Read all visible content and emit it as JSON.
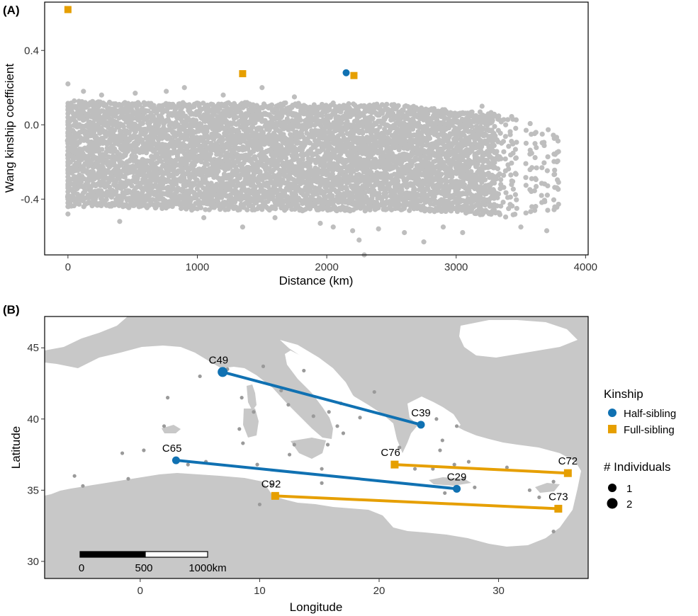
{
  "chart_data": [
    {
      "type": "scatter",
      "panel_label": "(A)",
      "xlabel": "Distance (km)",
      "ylabel": "Wang kinship coefficient",
      "xlim": [
        -180,
        4020
      ],
      "ylim": [
        -0.7,
        0.66
      ],
      "xticks": [
        0,
        1000,
        2000,
        3000,
        4000
      ],
      "yticks": [
        0.4,
        0.0,
        -0.4
      ],
      "ytick_labels": [
        "0.4",
        "0.0",
        "-0.4"
      ],
      "grid": false,
      "background_points": {
        "color": "#BEBEBE",
        "description_band": "dense cloud of unrelated pairs",
        "band": [
          {
            "x": 0,
            "lo": -0.44,
            "hi": 0.13
          },
          {
            "x": 500,
            "lo": -0.45,
            "hi": 0.12
          },
          {
            "x": 1000,
            "lo": -0.46,
            "hi": 0.12
          },
          {
            "x": 1500,
            "lo": -0.46,
            "hi": 0.12
          },
          {
            "x": 2000,
            "lo": -0.47,
            "hi": 0.12
          },
          {
            "x": 2500,
            "lo": -0.46,
            "hi": 0.11
          },
          {
            "x": 3000,
            "lo": -0.47,
            "hi": 0.08
          },
          {
            "x": 3400,
            "lo": -0.5,
            "hi": 0.06
          },
          {
            "x": 3800,
            "lo": -0.48,
            "hi": -0.05
          }
        ],
        "outliers": [
          [
            0,
            0.22
          ],
          [
            0,
            -0.48
          ],
          [
            120,
            0.18
          ],
          [
            260,
            0.16
          ],
          [
            400,
            -0.52
          ],
          [
            520,
            0.17
          ],
          [
            760,
            0.18
          ],
          [
            900,
            0.2
          ],
          [
            1050,
            -0.5
          ],
          [
            1200,
            0.16
          ],
          [
            1350,
            -0.55
          ],
          [
            1500,
            0.2
          ],
          [
            1600,
            -0.5
          ],
          [
            1750,
            0.15
          ],
          [
            1950,
            -0.53
          ],
          [
            2050,
            -0.55
          ],
          [
            2200,
            -0.57
          ],
          [
            2250,
            -0.62
          ],
          [
            2290,
            -0.7
          ],
          [
            2400,
            -0.56
          ],
          [
            2600,
            -0.58
          ],
          [
            2750,
            -0.63
          ],
          [
            2900,
            -0.55
          ],
          [
            3050,
            -0.58
          ],
          [
            3200,
            0.1
          ],
          [
            3500,
            -0.55
          ],
          [
            3700,
            -0.57
          ]
        ]
      },
      "series": [
        {
          "name": "Half-sibling",
          "color": "#1071B2",
          "marker": "circle",
          "points": [
            [
              2150,
              0.28
            ]
          ]
        },
        {
          "name": "Full-sibling",
          "color": "#E69F00",
          "marker": "square",
          "points": [
            [
              0,
              0.62
            ],
            [
              1350,
              0.275
            ],
            [
              2210,
              0.265
            ]
          ]
        }
      ]
    },
    {
      "type": "map",
      "panel_label": "(B)",
      "xlabel": "Longitude",
      "ylabel": "Latitude",
      "xlim": [
        -8,
        37.5
      ],
      "ylim": [
        28.8,
        47.2
      ],
      "xticks": [
        0,
        10,
        20,
        30
      ],
      "yticks": [
        30,
        35,
        40,
        45
      ],
      "land_color": "#C8C8C8",
      "sea_color": "#FFFFFF",
      "sample_sites": [
        [
          -5.5,
          36.0
        ],
        [
          -4.8,
          35.3
        ],
        [
          -1.0,
          35.8
        ],
        [
          -1.5,
          37.6
        ],
        [
          0.3,
          37.8
        ],
        [
          2.0,
          39.5
        ],
        [
          2.3,
          41.5
        ],
        [
          5.5,
          37.0
        ],
        [
          5.0,
          43.0
        ],
        [
          7.3,
          43.5
        ],
        [
          8.5,
          41.5
        ],
        [
          8.3,
          39.3
        ],
        [
          9.5,
          40.5
        ],
        [
          8.6,
          38.3
        ],
        [
          9.8,
          36.8
        ],
        [
          10.3,
          43.7
        ],
        [
          11.8,
          42.0
        ],
        [
          12.4,
          41.0
        ],
        [
          12.9,
          38.2
        ],
        [
          14.5,
          40.2
        ],
        [
          15.8,
          40.5
        ],
        [
          15.7,
          38.2
        ],
        [
          16.5,
          39.5
        ],
        [
          15.2,
          35.5
        ],
        [
          12.5,
          37.5
        ],
        [
          10.0,
          34.0
        ],
        [
          11.0,
          35.4
        ],
        [
          15.2,
          36.5
        ],
        [
          17.0,
          39.0
        ],
        [
          18.4,
          40.1
        ],
        [
          19.6,
          41.9
        ],
        [
          21.7,
          38.0
        ],
        [
          23.3,
          39.6
        ],
        [
          24.8,
          40.0
        ],
        [
          25.3,
          38.5
        ],
        [
          26.5,
          39.5
        ],
        [
          25.1,
          37.8
        ],
        [
          23.0,
          36.5
        ],
        [
          24.5,
          36.5
        ],
        [
          26.3,
          36.8
        ],
        [
          27.5,
          37.0
        ],
        [
          27.1,
          35.8
        ],
        [
          25.5,
          34.8
        ],
        [
          30.7,
          36.6
        ],
        [
          28.0,
          35.2
        ],
        [
          32.6,
          35.0
        ],
        [
          33.4,
          34.5
        ],
        [
          34.6,
          35.6
        ],
        [
          34.6,
          32.1
        ],
        [
          16.8,
          41.1
        ],
        [
          13.7,
          43.4
        ],
        [
          4.0,
          36.8
        ]
      ],
      "scale_bar": {
        "labels": [
          "0",
          "500",
          "1000km"
        ]
      },
      "series": [
        {
          "name": "Half-sibling",
          "color": "#1071B2",
          "marker": "circle",
          "pairs": [
            {
              "from": {
                "label": "C49",
                "lon": 6.9,
                "lat": 43.3,
                "n": 2
              },
              "to": {
                "label": "C39",
                "lon": 23.5,
                "lat": 39.6,
                "n": 1
              }
            },
            {
              "from": {
                "label": "C65",
                "lon": 3.0,
                "lat": 37.1,
                "n": 1
              },
              "to": {
                "label": "C29",
                "lon": 26.5,
                "lat": 35.1,
                "n": 1
              }
            }
          ]
        },
        {
          "name": "Full-sibling",
          "color": "#E69F00",
          "marker": "square",
          "pairs": [
            {
              "from": {
                "label": "C76",
                "lon": 21.3,
                "lat": 36.8,
                "n": 1
              },
              "to": {
                "label": "C72",
                "lon": 35.8,
                "lat": 36.2,
                "n": 1
              }
            },
            {
              "from": {
                "label": "C92",
                "lon": 11.3,
                "lat": 34.6,
                "n": 1
              },
              "to": {
                "label": "C73",
                "lon": 35.0,
                "lat": 33.7,
                "n": 1
              }
            }
          ]
        }
      ],
      "legend": {
        "placement": "right",
        "kinship_title": "Kinship",
        "kinship_items": [
          {
            "label": "Half-sibling",
            "color": "#1071B2",
            "marker": "circle"
          },
          {
            "label": "Full-sibling",
            "color": "#E69F00",
            "marker": "square"
          }
        ],
        "size_title": "# Individuals",
        "size_items": [
          {
            "label": "1",
            "n": 1
          },
          {
            "label": "2",
            "n": 2
          }
        ]
      }
    }
  ]
}
